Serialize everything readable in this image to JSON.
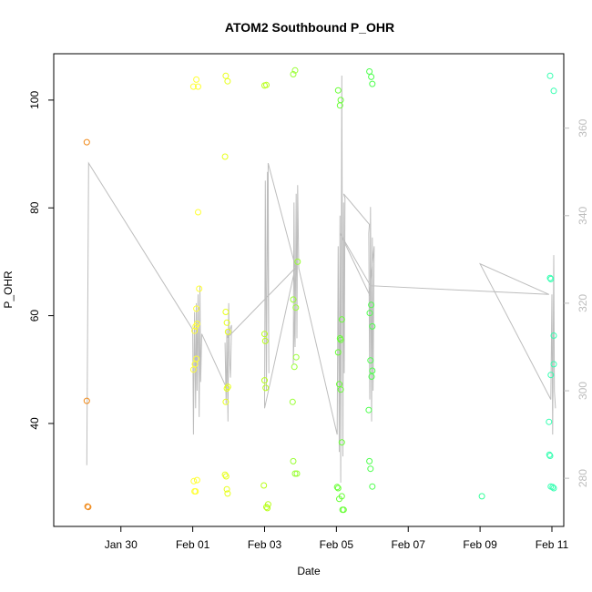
{
  "chart_data": {
    "type": "scatter",
    "title": "ATOM2 Southbound P_OHR",
    "xlabel": "Date",
    "ylabel": "P_OHR",
    "x_axis": {
      "unit": "days since Jan 28 (00:00)",
      "range": [
        0.13,
        14.33
      ],
      "ticks": [
        {
          "label": "Jan 30",
          "x": 2
        },
        {
          "label": "Feb 01",
          "x": 4
        },
        {
          "label": "Feb 03",
          "x": 6
        },
        {
          "label": "Feb 05",
          "x": 8
        },
        {
          "label": "Feb 07",
          "x": 10
        },
        {
          "label": "Feb 09",
          "x": 12
        },
        {
          "label": "Feb 11",
          "x": 14
        }
      ]
    },
    "y_axis_left": {
      "range": [
        20.9,
        108.6
      ],
      "ticks": [
        40,
        60,
        80,
        100
      ]
    },
    "y_axis_right": {
      "range": [
        269,
        377
      ],
      "ticks": [
        280,
        300,
        320,
        340,
        360
      ],
      "color": "#bdbdbd"
    },
    "grid": false,
    "series": [
      {
        "marker": "open-circle",
        "color_note": "points colored by time (orange → green → cyan)",
        "points": [
          {
            "x": 1.05,
            "y": 92.2,
            "color": "#f08a1a"
          },
          {
            "x": 1.05,
            "y": 44.2,
            "color": "#f08a1a"
          },
          {
            "x": 1.07,
            "y": 24.6,
            "color": "#f08a1a"
          },
          {
            "x": 1.09,
            "y": 24.5,
            "color": "#f08a1a"
          },
          {
            "x": 4.02,
            "y": 102.5,
            "color": "#ffff33"
          },
          {
            "x": 4.1,
            "y": 103.8,
            "color": "#ffff33"
          },
          {
            "x": 4.15,
            "y": 102.5,
            "color": "#ffff33"
          },
          {
            "x": 4.15,
            "y": 79.2,
            "color": "#ffff33"
          },
          {
            "x": 4.18,
            "y": 65.0,
            "color": "#ffff33"
          },
          {
            "x": 4.05,
            "y": 57.2,
            "color": "#ffff33"
          },
          {
            "x": 4.08,
            "y": 58.0,
            "color": "#ffff33"
          },
          {
            "x": 4.12,
            "y": 58.5,
            "color": "#ffff33"
          },
          {
            "x": 4.1,
            "y": 61.3,
            "color": "#ffff33"
          },
          {
            "x": 4.02,
            "y": 50.0,
            "color": "#ffff33"
          },
          {
            "x": 4.06,
            "y": 51.0,
            "color": "#ffff33"
          },
          {
            "x": 4.1,
            "y": 52.0,
            "color": "#ffff33"
          },
          {
            "x": 4.03,
            "y": 29.3,
            "color": "#ffff33"
          },
          {
            "x": 4.12,
            "y": 29.5,
            "color": "#ffff33"
          },
          {
            "x": 4.05,
            "y": 27.4,
            "color": "#ffff33"
          },
          {
            "x": 4.08,
            "y": 27.4,
            "color": "#ffff33"
          },
          {
            "x": 4.92,
            "y": 104.5,
            "color": "#e7ff1a"
          },
          {
            "x": 4.97,
            "y": 103.5,
            "color": "#e7ff1a"
          },
          {
            "x": 4.9,
            "y": 89.5,
            "color": "#e7ff1a"
          },
          {
            "x": 4.92,
            "y": 60.7,
            "color": "#e7ff1a"
          },
          {
            "x": 4.95,
            "y": 58.7,
            "color": "#e7ff1a"
          },
          {
            "x": 4.98,
            "y": 57.0,
            "color": "#e7ff1a"
          },
          {
            "x": 4.95,
            "y": 46.5,
            "color": "#e7ff1a"
          },
          {
            "x": 4.98,
            "y": 46.8,
            "color": "#e7ff1a"
          },
          {
            "x": 4.92,
            "y": 44.0,
            "color": "#e7ff1a"
          },
          {
            "x": 4.9,
            "y": 30.5,
            "color": "#e7ff1a"
          },
          {
            "x": 4.93,
            "y": 30.2,
            "color": "#e7ff1a"
          },
          {
            "x": 4.95,
            "y": 27.8,
            "color": "#e7ff1a"
          },
          {
            "x": 4.97,
            "y": 27.0,
            "color": "#e7ff1a"
          },
          {
            "x": 6.0,
            "y": 102.7,
            "color": "#b8ff1a"
          },
          {
            "x": 6.05,
            "y": 102.8,
            "color": "#b8ff1a"
          },
          {
            "x": 6.0,
            "y": 56.6,
            "color": "#b8ff1a"
          },
          {
            "x": 6.02,
            "y": 55.3,
            "color": "#b8ff1a"
          },
          {
            "x": 6.0,
            "y": 48.0,
            "color": "#b8ff1a"
          },
          {
            "x": 6.03,
            "y": 46.6,
            "color": "#b8ff1a"
          },
          {
            "x": 5.98,
            "y": 28.5,
            "color": "#b8ff1a"
          },
          {
            "x": 6.05,
            "y": 24.5,
            "color": "#b8ff1a"
          },
          {
            "x": 6.1,
            "y": 25.0,
            "color": "#b8ff1a"
          },
          {
            "x": 6.08,
            "y": 24.3,
            "color": "#b8ff1a"
          },
          {
            "x": 6.8,
            "y": 104.8,
            "color": "#99ff33"
          },
          {
            "x": 6.85,
            "y": 105.5,
            "color": "#99ff33"
          },
          {
            "x": 6.92,
            "y": 70.0,
            "color": "#99ff33"
          },
          {
            "x": 6.8,
            "y": 63.0,
            "color": "#99ff33"
          },
          {
            "x": 6.87,
            "y": 61.5,
            "color": "#99ff33"
          },
          {
            "x": 6.88,
            "y": 52.3,
            "color": "#99ff33"
          },
          {
            "x": 6.83,
            "y": 50.5,
            "color": "#99ff33"
          },
          {
            "x": 6.78,
            "y": 44.0,
            "color": "#99ff33"
          },
          {
            "x": 6.8,
            "y": 33.0,
            "color": "#99ff33"
          },
          {
            "x": 6.85,
            "y": 30.7,
            "color": "#99ff33"
          },
          {
            "x": 6.9,
            "y": 30.7,
            "color": "#99ff33"
          },
          {
            "x": 8.05,
            "y": 101.8,
            "color": "#66ff33"
          },
          {
            "x": 8.12,
            "y": 100.0,
            "color": "#66ff33"
          },
          {
            "x": 8.1,
            "y": 99.0,
            "color": "#66ff33"
          },
          {
            "x": 8.15,
            "y": 59.3,
            "color": "#66ff33"
          },
          {
            "x": 8.1,
            "y": 55.8,
            "color": "#66ff33"
          },
          {
            "x": 8.12,
            "y": 55.5,
            "color": "#66ff33"
          },
          {
            "x": 8.05,
            "y": 53.2,
            "color": "#66ff33"
          },
          {
            "x": 8.08,
            "y": 47.3,
            "color": "#66ff33"
          },
          {
            "x": 8.12,
            "y": 46.3,
            "color": "#66ff33"
          },
          {
            "x": 8.15,
            "y": 36.5,
            "color": "#66ff33"
          },
          {
            "x": 8.02,
            "y": 28.2,
            "color": "#66ff33"
          },
          {
            "x": 8.05,
            "y": 28.0,
            "color": "#66ff33"
          },
          {
            "x": 8.15,
            "y": 26.5,
            "color": "#66ff33"
          },
          {
            "x": 8.08,
            "y": 26.0,
            "color": "#66ff33"
          },
          {
            "x": 8.17,
            "y": 24.0,
            "color": "#66ff33"
          },
          {
            "x": 8.2,
            "y": 24.0,
            "color": "#66ff33"
          },
          {
            "x": 8.92,
            "y": 105.3,
            "color": "#4dff4d"
          },
          {
            "x": 8.97,
            "y": 104.3,
            "color": "#4dff4d"
          },
          {
            "x": 9.0,
            "y": 103.0,
            "color": "#4dff4d"
          },
          {
            "x": 8.97,
            "y": 62.0,
            "color": "#4dff4d"
          },
          {
            "x": 8.93,
            "y": 60.5,
            "color": "#4dff4d"
          },
          {
            "x": 9.0,
            "y": 58.0,
            "color": "#4dff4d"
          },
          {
            "x": 8.95,
            "y": 51.7,
            "color": "#4dff4d"
          },
          {
            "x": 9.0,
            "y": 49.8,
            "color": "#4dff4d"
          },
          {
            "x": 8.98,
            "y": 48.7,
            "color": "#4dff4d"
          },
          {
            "x": 8.9,
            "y": 42.5,
            "color": "#4dff4d"
          },
          {
            "x": 8.92,
            "y": 33.0,
            "color": "#4dff4d"
          },
          {
            "x": 8.95,
            "y": 31.6,
            "color": "#4dff4d"
          },
          {
            "x": 9.0,
            "y": 28.3,
            "color": "#4dff4d"
          },
          {
            "x": 12.05,
            "y": 26.5,
            "color": "#33ff99"
          },
          {
            "x": 13.95,
            "y": 104.5,
            "color": "#33ffb0"
          },
          {
            "x": 14.05,
            "y": 101.7,
            "color": "#33ffb0"
          },
          {
            "x": 13.95,
            "y": 67.0,
            "color": "#33ffb0"
          },
          {
            "x": 13.97,
            "y": 66.8,
            "color": "#33ffb0"
          },
          {
            "x": 14.05,
            "y": 56.3,
            "color": "#33ffb0"
          },
          {
            "x": 14.05,
            "y": 51.0,
            "color": "#33ffb0"
          },
          {
            "x": 13.97,
            "y": 49.0,
            "color": "#33ffb0"
          },
          {
            "x": 13.92,
            "y": 40.3,
            "color": "#33ffb0"
          },
          {
            "x": 13.93,
            "y": 34.2,
            "color": "#33ffb0"
          },
          {
            "x": 13.95,
            "y": 34.0,
            "color": "#33ffb0"
          },
          {
            "x": 13.97,
            "y": 28.3,
            "color": "#33ffb0"
          },
          {
            "x": 14.02,
            "y": 28.2,
            "color": "#33ffb0"
          },
          {
            "x": 14.05,
            "y": 28.0,
            "color": "#33ffb0"
          }
        ]
      },
      {
        "type": "line",
        "axis": "right",
        "color": "#bdbdbd",
        "points": [
          [
            1.05,
            283
          ],
          [
            1.1,
            352
          ],
          [
            4.0,
            314
          ],
          [
            4.02,
            290
          ],
          [
            4.05,
            318
          ],
          [
            4.08,
            296
          ],
          [
            4.1,
            320
          ],
          [
            4.12,
            300
          ],
          [
            4.15,
            322
          ],
          [
            4.18,
            294
          ],
          [
            4.2,
            324
          ],
          [
            4.22,
            302
          ],
          [
            4.25,
            313
          ],
          [
            4.92,
            301
          ],
          [
            4.9,
            311
          ],
          [
            4.93,
            297
          ],
          [
            4.95,
            314
          ],
          [
            4.98,
            293
          ],
          [
            5.0,
            320
          ],
          [
            5.02,
            308
          ],
          [
            5.05,
            303
          ],
          [
            5.08,
            315
          ],
          [
            4.95,
            312
          ],
          [
            6.85,
            328
          ],
          [
            6.0,
            296
          ],
          [
            6.02,
            348
          ],
          [
            6.05,
            300
          ],
          [
            6.08,
            350
          ],
          [
            6.12,
            304
          ],
          [
            6.1,
            352
          ],
          [
            6.87,
            328
          ],
          [
            6.8,
            306
          ],
          [
            6.82,
            343
          ],
          [
            6.85,
            310
          ],
          [
            6.88,
            345
          ],
          [
            6.9,
            312
          ],
          [
            6.92,
            347
          ],
          [
            6.95,
            328
          ],
          [
            8.02,
            290
          ],
          [
            8.05,
            333
          ],
          [
            8.08,
            286
          ],
          [
            8.1,
            340
          ],
          [
            8.12,
            279
          ],
          [
            8.15,
            372
          ],
          [
            8.18,
            285
          ],
          [
            8.2,
            343
          ],
          [
            8.22,
            304
          ],
          [
            8.24,
            344
          ],
          [
            8.2,
            345
          ],
          [
            8.92,
            338
          ],
          [
            8.9,
            336
          ],
          [
            8.93,
            298
          ],
          [
            8.95,
            342
          ],
          [
            8.98,
            293
          ],
          [
            9.0,
            335
          ],
          [
            9.02,
            300
          ],
          [
            9.05,
            333
          ],
          [
            8.92,
            322
          ],
          [
            8.1,
            336
          ],
          [
            8.95,
            324
          ],
          [
            13.92,
            322
          ],
          [
            12.0,
            329
          ],
          [
            13.97,
            298
          ],
          [
            14.0,
            322
          ],
          [
            14.02,
            290
          ],
          [
            14.05,
            331
          ],
          [
            14.07,
            300
          ],
          [
            14.1,
            296
          ]
        ]
      }
    ]
  }
}
